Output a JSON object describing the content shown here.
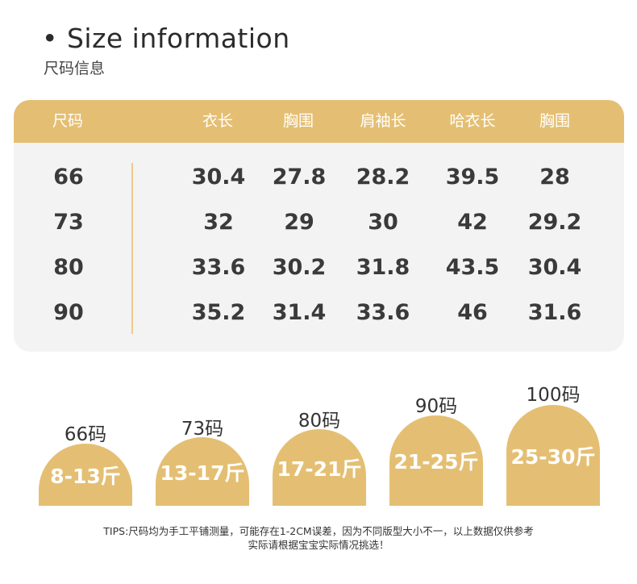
{
  "title": "• Size information",
  "subtitle": "尺码信息",
  "table": {
    "headers": [
      "尺码",
      "衣长",
      "胸围",
      "肩袖长",
      "哈衣长",
      "胸围"
    ],
    "rows": [
      [
        "66",
        "30.4",
        "27.8",
        "28.2",
        "39.5",
        "28"
      ],
      [
        "73",
        "32",
        "29",
        "30",
        "42",
        "29.2"
      ],
      [
        "80",
        "33.6",
        "30.2",
        "31.8",
        "43.5",
        "30.4"
      ],
      [
        "90",
        "35.2",
        "31.4",
        "33.6",
        "46",
        "31.6"
      ]
    ]
  },
  "sizes": [
    {
      "label": "66码",
      "weight": "8-13斤",
      "level": 1
    },
    {
      "label": "73码",
      "weight": "13-17斤",
      "level": 2
    },
    {
      "label": "80码",
      "weight": "17-21斤",
      "level": 3
    },
    {
      "label": "90码",
      "weight": "21-25斤",
      "level": 4
    },
    {
      "label": "100码",
      "weight": "25-30斤",
      "level": 5
    }
  ],
  "tips": [
    "TIPS:尺码均为手工平铺测量，可能存在1-2CM误差，因为不同版型大小不一，以上数据仅供参考",
    "实际请根据宝宝实际情况挑选！"
  ],
  "colors": {
    "accent": "#e4bf73",
    "card": "#f3f3f3",
    "divider": "#f0c98a"
  }
}
